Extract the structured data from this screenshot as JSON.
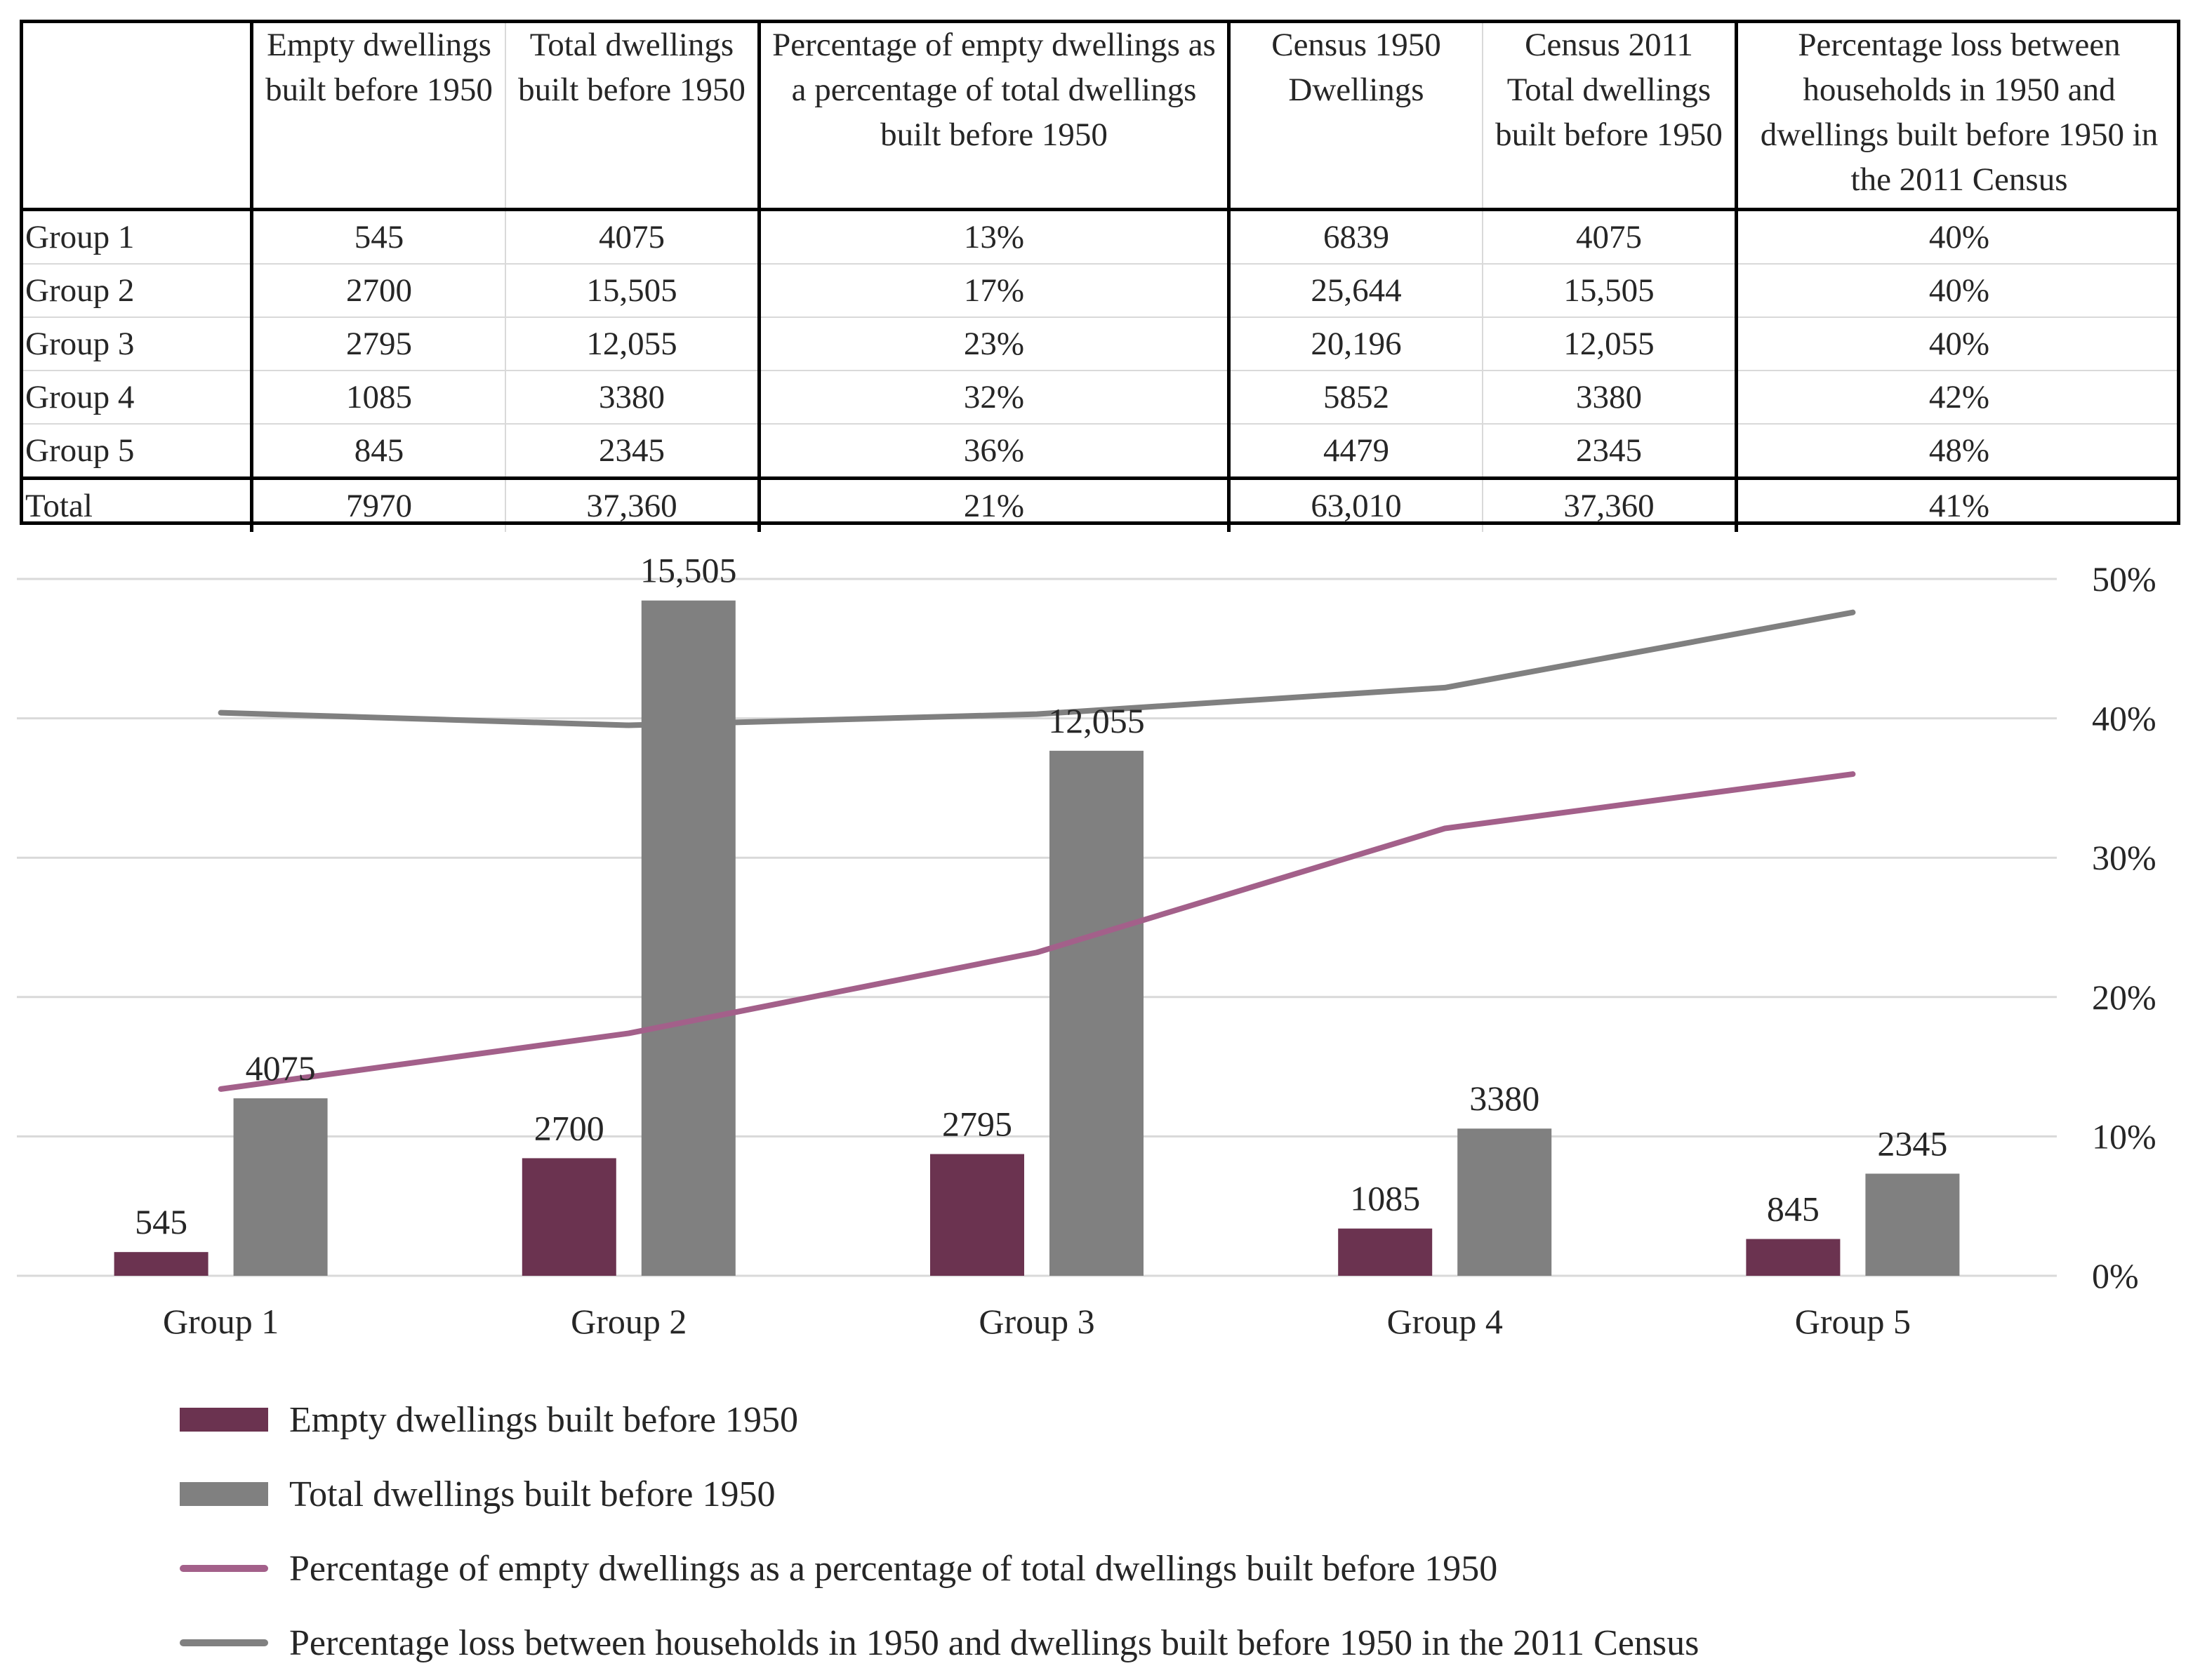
{
  "table": {
    "headers": [
      "",
      "Empty dwellings built before 1950",
      "Total dwellings built before 1950",
      "Percentage of empty dwellings as a percentage of total dwellings built before 1950",
      "Census 1950 Dwellings",
      "Census 2011 Total dwellings built before 1950",
      "Percentage loss between households in 1950 and dwellings built before 1950 in the 2011 Census"
    ],
    "rows": [
      [
        "Group 1",
        "545",
        "4075",
        "13%",
        "6839",
        "4075",
        "40%"
      ],
      [
        "Group 2",
        "2700",
        "15,505",
        "17%",
        "25,644",
        "15,505",
        "40%"
      ],
      [
        "Group 3",
        "2795",
        "12,055",
        "23%",
        "20,196",
        "12,055",
        "40%"
      ],
      [
        "Group 4",
        "1085",
        "3380",
        "32%",
        "5852",
        "3380",
        "42%"
      ],
      [
        "Group 5",
        "845",
        "2345",
        "36%",
        "4479",
        "2345",
        "48%"
      ],
      [
        "Total",
        "7970",
        "37,360",
        "21%",
        "63,010",
        "37,360",
        "41%"
      ]
    ]
  },
  "chart_data": {
    "type": "bar",
    "categories": [
      "Group 1",
      "Group 2",
      "Group 3",
      "Group 4",
      "Group 5"
    ],
    "series": [
      {
        "name": "Empty dwellings built before 1950",
        "type": "bar",
        "axis": "left",
        "values": [
          545,
          2700,
          2795,
          1085,
          845
        ],
        "labels": [
          "545",
          "2700",
          "2795",
          "1085",
          "845"
        ],
        "color": "#6b3350"
      },
      {
        "name": "Total dwellings built before 1950",
        "type": "bar",
        "axis": "left",
        "values": [
          4075,
          15505,
          12055,
          3380,
          2345
        ],
        "labels": [
          "4075",
          "15,505",
          "12,055",
          "3380",
          "2345"
        ],
        "color": "#808080"
      },
      {
        "name": "Percentage of empty dwellings as a percentage of total dwellings built before 1950",
        "type": "line",
        "axis": "right",
        "values": [
          13.4,
          17.4,
          23.2,
          32.1,
          36.0
        ],
        "color": "#a3608a"
      },
      {
        "name": "Percentage loss between households in 1950 and dwellings built before 1950 in the 2011 Census",
        "type": "line",
        "axis": "right",
        "values": [
          40.4,
          39.5,
          40.3,
          42.2,
          47.6
        ],
        "color": "#808080"
      }
    ],
    "y_left_range": [
      0,
      16000
    ],
    "y_right_range": [
      0,
      50
    ],
    "y_right_ticks": [
      "0%",
      "10%",
      "20%",
      "30%",
      "40%",
      "50%"
    ],
    "grid": true,
    "legend_position": "bottom"
  }
}
